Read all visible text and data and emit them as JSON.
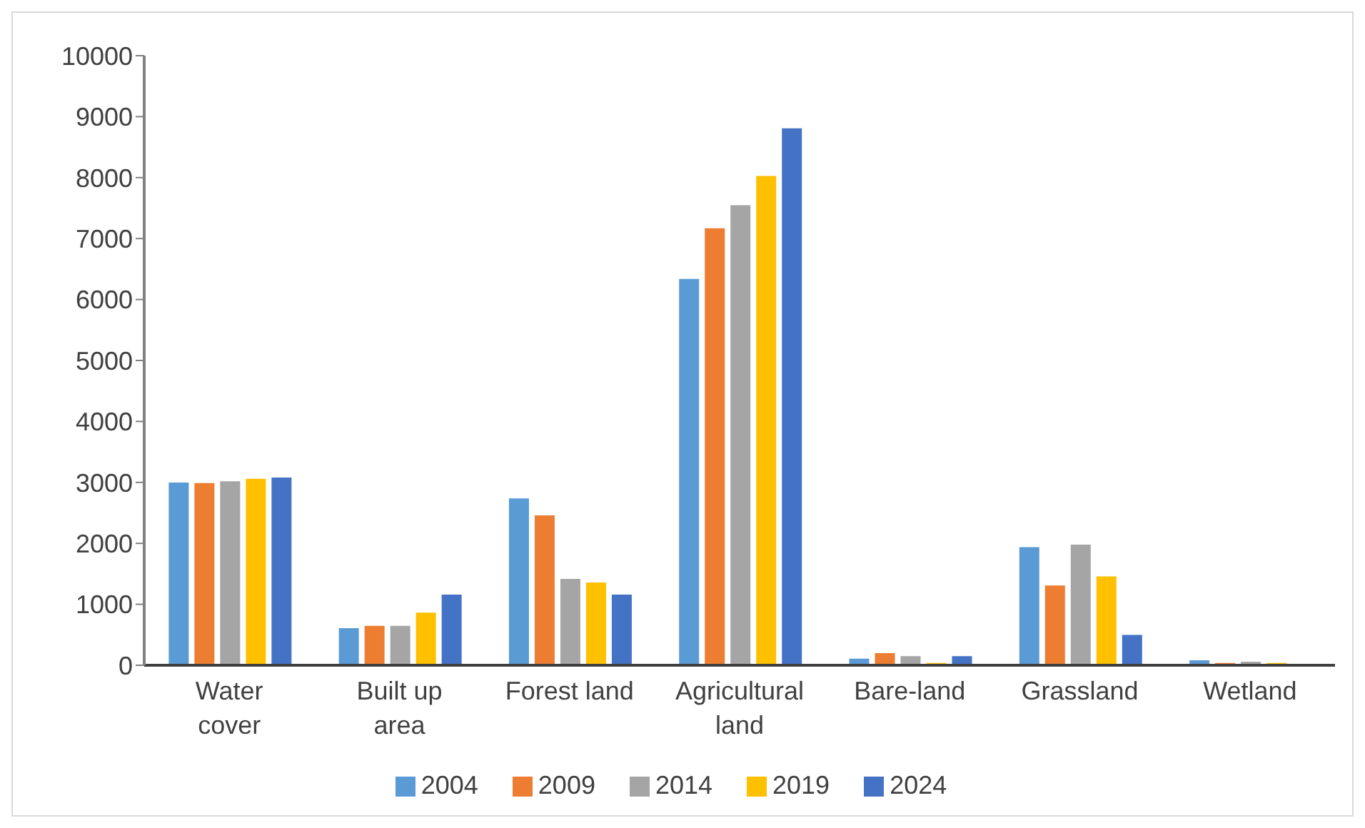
{
  "chart_data": {
    "type": "bar",
    "categories": [
      "Water cover",
      "Built up area",
      "Forest land",
      "Agricultural land",
      "Bare-land",
      "Grassland",
      "Wetland"
    ],
    "series": [
      {
        "name": "2004",
        "color": "#5b9bd5",
        "values": [
          3010,
          620,
          2750,
          6350,
          120,
          1950,
          95
        ]
      },
      {
        "name": "2009",
        "color": "#ed7d31",
        "values": [
          3000,
          660,
          2470,
          7180,
          210,
          1320,
          50
        ]
      },
      {
        "name": "2014",
        "color": "#a5a5a5",
        "values": [
          3030,
          660,
          1430,
          7560,
          160,
          1990,
          70
        ]
      },
      {
        "name": "2019",
        "color": "#ffc000",
        "values": [
          3070,
          875,
          1370,
          8040,
          50,
          1470,
          50
        ]
      },
      {
        "name": "2024",
        "color": "#4472c4",
        "values": [
          3090,
          1170,
          1170,
          8820,
          160,
          510,
          0
        ]
      }
    ],
    "ylim": [
      0,
      10000
    ],
    "yticks": [
      0,
      1000,
      2000,
      3000,
      4000,
      5000,
      6000,
      7000,
      8000,
      9000,
      10000
    ],
    "grid": false,
    "legend": "bottom"
  }
}
